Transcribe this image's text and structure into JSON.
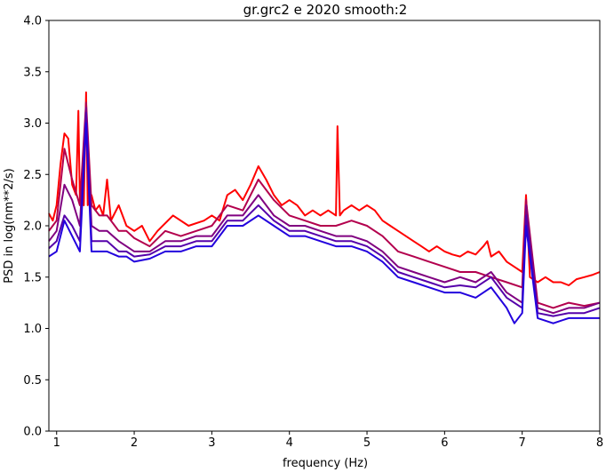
{
  "chart_data": {
    "type": "line",
    "title": "gr.grc2 e 2020 smooth:2",
    "xlabel": "frequency (Hz)",
    "ylabel": "PSD in log(nm**2/s)",
    "xlim": [
      0.9,
      8.0
    ],
    "ylim": [
      0.0,
      4.0
    ],
    "xticks": [
      1,
      2,
      3,
      4,
      5,
      6,
      7,
      8
    ],
    "yticks": [
      0.0,
      0.5,
      1.0,
      1.5,
      2.0,
      2.5,
      3.0,
      3.5,
      4.0
    ],
    "xtick_labels": [
      "1",
      "2",
      "3",
      "4",
      "5",
      "6",
      "7",
      "8"
    ],
    "ytick_labels": [
      "0.0",
      "0.5",
      "1.0",
      "1.5",
      "2.0",
      "2.5",
      "3.0",
      "3.5",
      "4.0"
    ],
    "grid": false,
    "legend": "none",
    "series": [
      {
        "color": "#ff0000",
        "x": [
          0.9,
          0.95,
          1.0,
          1.05,
          1.1,
          1.15,
          1.2,
          1.25,
          1.28,
          1.3,
          1.35,
          1.38,
          1.4,
          1.45,
          1.5,
          1.55,
          1.6,
          1.65,
          1.7,
          1.8,
          1.9,
          2.0,
          2.1,
          2.2,
          2.3,
          2.5,
          2.7,
          2.9,
          3.0,
          3.1,
          3.2,
          3.3,
          3.4,
          3.5,
          3.6,
          3.7,
          3.8,
          3.9,
          4.0,
          4.1,
          4.2,
          4.3,
          4.4,
          4.5,
          4.6,
          4.62,
          4.65,
          4.7,
          4.8,
          4.9,
          5.0,
          5.1,
          5.2,
          5.3,
          5.4,
          5.5,
          5.6,
          5.7,
          5.8,
          5.9,
          6.0,
          6.1,
          6.2,
          6.3,
          6.4,
          6.5,
          6.55,
          6.6,
          6.7,
          6.8,
          6.9,
          7.0,
          7.05,
          7.1,
          7.2,
          7.3,
          7.4,
          7.5,
          7.6,
          7.7,
          7.8,
          7.9,
          8.0
        ],
        "y": [
          2.12,
          2.05,
          2.2,
          2.6,
          2.9,
          2.85,
          2.4,
          2.3,
          3.12,
          2.25,
          2.2,
          3.3,
          2.2,
          2.3,
          2.15,
          2.2,
          2.1,
          2.45,
          2.05,
          2.2,
          2.0,
          1.95,
          2.0,
          1.85,
          1.95,
          2.1,
          2.0,
          2.05,
          2.1,
          2.05,
          2.3,
          2.35,
          2.25,
          2.4,
          2.58,
          2.45,
          2.3,
          2.2,
          2.25,
          2.2,
          2.1,
          2.15,
          2.1,
          2.15,
          2.1,
          2.97,
          2.1,
          2.15,
          2.2,
          2.15,
          2.2,
          2.15,
          2.05,
          2.0,
          1.95,
          1.9,
          1.85,
          1.8,
          1.75,
          1.8,
          1.75,
          1.72,
          1.7,
          1.75,
          1.72,
          1.8,
          1.85,
          1.7,
          1.75,
          1.65,
          1.6,
          1.55,
          2.3,
          1.5,
          1.45,
          1.5,
          1.45,
          1.45,
          1.42,
          1.48,
          1.5,
          1.52,
          1.55
        ]
      },
      {
        "color": "#b3004d",
        "x": [
          0.9,
          1.0,
          1.1,
          1.2,
          1.3,
          1.38,
          1.45,
          1.55,
          1.65,
          1.8,
          1.9,
          2.0,
          2.2,
          2.4,
          2.6,
          2.8,
          3.0,
          3.2,
          3.4,
          3.6,
          3.8,
          4.0,
          4.2,
          4.4,
          4.6,
          4.8,
          5.0,
          5.2,
          5.4,
          5.6,
          5.8,
          6.0,
          6.2,
          6.4,
          6.6,
          6.8,
          7.0,
          7.05,
          7.2,
          7.4,
          7.6,
          7.8,
          8.0
        ],
        "y": [
          1.95,
          2.05,
          2.75,
          2.45,
          2.2,
          3.2,
          2.2,
          2.1,
          2.1,
          1.95,
          1.95,
          1.88,
          1.8,
          1.95,
          1.9,
          1.95,
          2.0,
          2.2,
          2.15,
          2.45,
          2.25,
          2.1,
          2.05,
          2.0,
          2.0,
          2.05,
          2.0,
          1.9,
          1.75,
          1.7,
          1.65,
          1.6,
          1.55,
          1.55,
          1.5,
          1.45,
          1.4,
          2.25,
          1.25,
          1.2,
          1.25,
          1.22,
          1.25
        ]
      },
      {
        "color": "#800080",
        "x": [
          0.9,
          1.0,
          1.1,
          1.2,
          1.3,
          1.38,
          1.45,
          1.55,
          1.65,
          1.8,
          1.9,
          2.0,
          2.2,
          2.4,
          2.6,
          2.8,
          3.0,
          3.2,
          3.4,
          3.6,
          3.8,
          4.0,
          4.2,
          4.4,
          4.6,
          4.8,
          5.0,
          5.2,
          5.4,
          5.6,
          5.8,
          6.0,
          6.2,
          6.4,
          6.6,
          6.8,
          7.0,
          7.05,
          7.2,
          7.4,
          7.6,
          7.8,
          8.0
        ],
        "y": [
          1.85,
          1.95,
          2.4,
          2.25,
          2.0,
          3.15,
          2.0,
          1.95,
          1.95,
          1.85,
          1.8,
          1.75,
          1.75,
          1.85,
          1.85,
          1.9,
          1.9,
          2.1,
          2.1,
          2.3,
          2.1,
          2.0,
          2.0,
          1.95,
          1.9,
          1.9,
          1.85,
          1.75,
          1.6,
          1.55,
          1.5,
          1.45,
          1.5,
          1.45,
          1.55,
          1.35,
          1.25,
          2.2,
          1.2,
          1.15,
          1.2,
          1.2,
          1.25
        ]
      },
      {
        "color": "#5500aa",
        "x": [
          0.9,
          1.0,
          1.1,
          1.2,
          1.3,
          1.38,
          1.45,
          1.55,
          1.65,
          1.8,
          1.9,
          2.0,
          2.2,
          2.4,
          2.6,
          2.8,
          3.0,
          3.2,
          3.4,
          3.6,
          3.8,
          4.0,
          4.2,
          4.4,
          4.6,
          4.8,
          5.0,
          5.2,
          5.4,
          5.6,
          5.8,
          6.0,
          6.2,
          6.4,
          6.6,
          6.8,
          7.0,
          7.05,
          7.2,
          7.4,
          7.6,
          7.8,
          8.0
        ],
        "y": [
          1.78,
          1.85,
          2.1,
          2.0,
          1.85,
          3.1,
          1.85,
          1.85,
          1.85,
          1.75,
          1.75,
          1.7,
          1.72,
          1.8,
          1.8,
          1.85,
          1.85,
          2.05,
          2.05,
          2.2,
          2.05,
          1.95,
          1.95,
          1.9,
          1.85,
          1.85,
          1.8,
          1.7,
          1.55,
          1.5,
          1.45,
          1.4,
          1.42,
          1.4,
          1.5,
          1.3,
          1.2,
          2.1,
          1.15,
          1.12,
          1.15,
          1.15,
          1.2
        ]
      },
      {
        "color": "#2200dd",
        "x": [
          0.9,
          1.0,
          1.1,
          1.2,
          1.3,
          1.38,
          1.45,
          1.55,
          1.65,
          1.8,
          1.9,
          2.0,
          2.2,
          2.4,
          2.6,
          2.8,
          3.0,
          3.2,
          3.4,
          3.6,
          3.8,
          4.0,
          4.2,
          4.4,
          4.6,
          4.8,
          5.0,
          5.2,
          5.4,
          5.6,
          5.8,
          6.0,
          6.2,
          6.4,
          6.6,
          6.8,
          6.9,
          7.0,
          7.05,
          7.2,
          7.4,
          7.6,
          7.8,
          8.0
        ],
        "y": [
          1.7,
          1.75,
          2.05,
          1.9,
          1.75,
          3.0,
          1.75,
          1.75,
          1.75,
          1.7,
          1.7,
          1.65,
          1.68,
          1.75,
          1.75,
          1.8,
          1.8,
          2.0,
          2.0,
          2.1,
          2.0,
          1.9,
          1.9,
          1.85,
          1.8,
          1.8,
          1.75,
          1.65,
          1.5,
          1.45,
          1.4,
          1.35,
          1.35,
          1.3,
          1.4,
          1.2,
          1.05,
          1.15,
          2.0,
          1.1,
          1.05,
          1.1,
          1.1,
          1.1
        ]
      }
    ]
  }
}
